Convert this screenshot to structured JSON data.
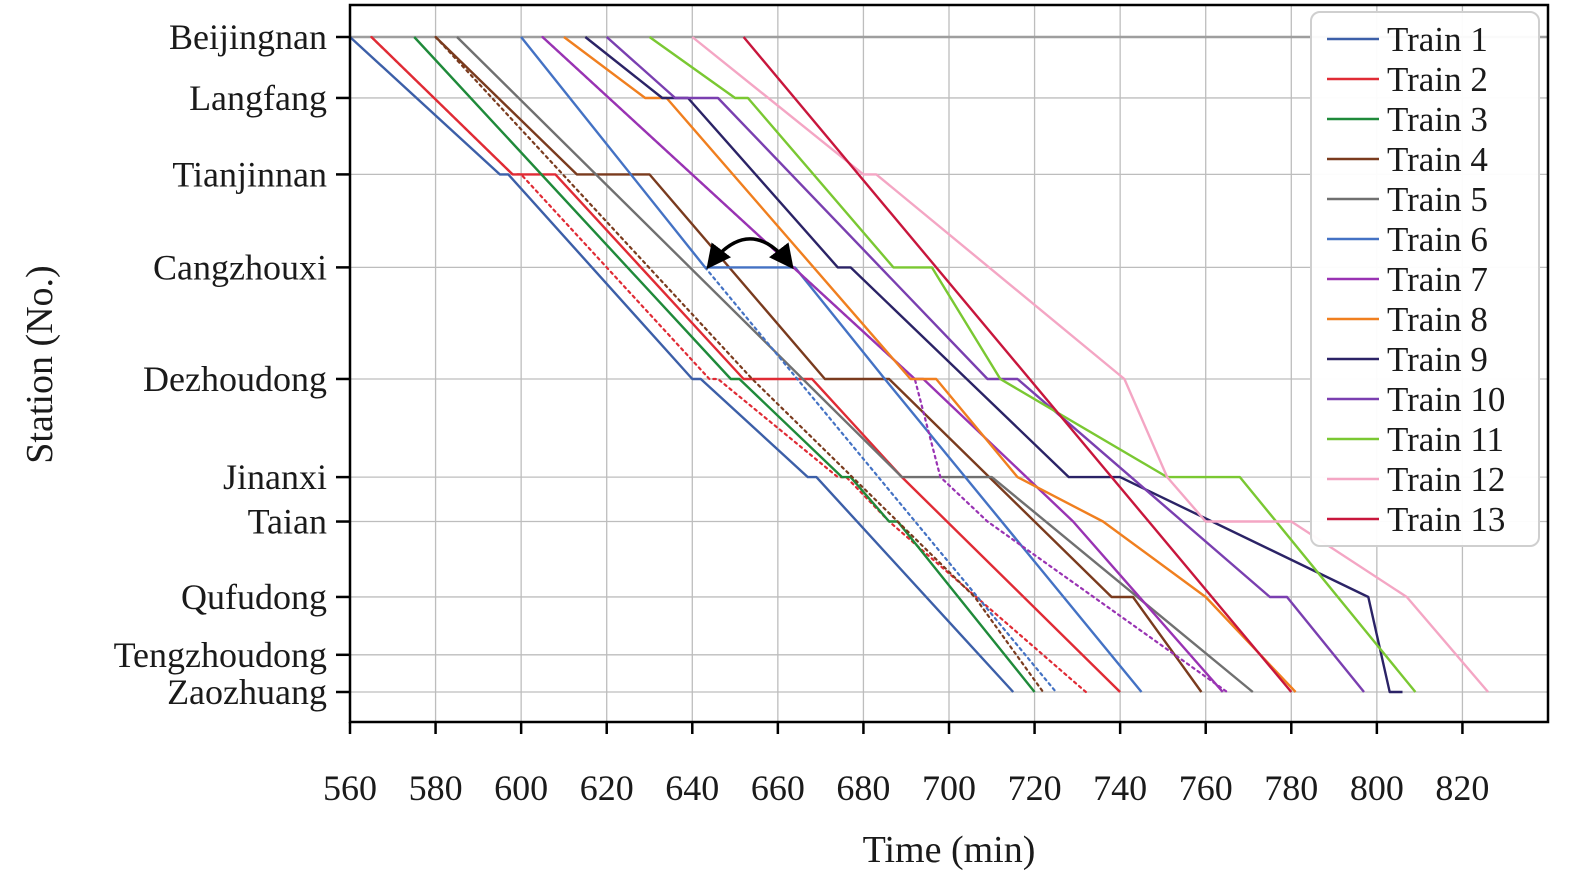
{
  "chart_data": {
    "type": "line",
    "xlabel": "Time (min)",
    "ylabel": "Station (No.)",
    "xlim": [
      560,
      840
    ],
    "x_ticks": [
      560,
      580,
      600,
      620,
      640,
      660,
      680,
      700,
      720,
      740,
      760,
      780,
      800,
      820
    ],
    "grid": true,
    "legend_position": "top-right",
    "stations": [
      "Beijingnan",
      "Langfang",
      "Tianjinnan",
      "Cangzhouxi",
      "Dezhoudong",
      "Jinanxi",
      "Taian",
      "Qufudong",
      "Tengzhoudong",
      "Zaozhuang"
    ],
    "station_offsets": [
      0,
      0.59,
      1.33,
      2.23,
      3.31,
      4.26,
      4.69,
      5.42,
      5.98,
      6.34
    ],
    "series": [
      {
        "name": "Train 1",
        "color": "#3c5fa8",
        "actual": [
          [
            560,
            0
          ],
          [
            595,
            1.33
          ],
          [
            597,
            1.33
          ],
          [
            640,
            3.31
          ],
          [
            642,
            3.31
          ],
          [
            667,
            4.26
          ],
          [
            669,
            4.26
          ],
          [
            715,
            6.34
          ]
        ]
      },
      {
        "name": "Train 2",
        "color": "#e02b35",
        "actual": [
          [
            565,
            0
          ],
          [
            598,
            1.33
          ],
          [
            608,
            1.33
          ],
          [
            652,
            3.31
          ],
          [
            668,
            3.31
          ],
          [
            689,
            4.26
          ],
          [
            740,
            6.34
          ]
        ],
        "planned": [
          [
            565,
            0
          ],
          [
            598,
            1.33
          ],
          [
            600,
            1.33
          ],
          [
            644,
            3.31
          ],
          [
            646,
            3.31
          ],
          [
            674,
            4.26
          ],
          [
            676,
            4.26
          ],
          [
            686,
            4.69
          ],
          [
            732,
            6.34
          ]
        ]
      },
      {
        "name": "Train 3",
        "color": "#1f8a3a",
        "actual": [
          [
            575,
            0
          ],
          [
            649,
            3.31
          ],
          [
            651,
            3.31
          ],
          [
            675,
            4.26
          ],
          [
            677,
            4.26
          ],
          [
            686,
            4.69
          ],
          [
            688,
            4.69
          ],
          [
            720,
            6.34
          ]
        ]
      },
      {
        "name": "Train 4",
        "color": "#7a3b1e",
        "actual": [
          [
            580,
            0
          ],
          [
            613,
            1.33
          ],
          [
            630,
            1.33
          ],
          [
            671,
            3.31
          ],
          [
            686,
            3.31
          ],
          [
            738,
            5.42
          ],
          [
            743,
            5.42
          ],
          [
            759,
            6.34
          ]
        ],
        "planned": [
          [
            580,
            0
          ],
          [
            654,
            3.31
          ],
          [
            706,
            5.42
          ],
          [
            722,
            6.34
          ]
        ]
      },
      {
        "name": "Train 5",
        "color": "#707070",
        "actual": [
          [
            585,
            0
          ],
          [
            689,
            4.26
          ],
          [
            710,
            4.26
          ],
          [
            771,
            6.34
          ]
        ]
      },
      {
        "name": "Train 6",
        "color": "#4472c4",
        "actual": [
          [
            600,
            0
          ],
          [
            643,
            2.23
          ],
          [
            664,
            2.23
          ],
          [
            685,
            3.31
          ],
          [
            745,
            6.34
          ]
        ],
        "planned": [
          [
            643,
            2.23
          ],
          [
            725,
            6.34
          ]
        ]
      },
      {
        "name": "Train 7",
        "color": "#9933b3",
        "actual": [
          [
            605,
            0
          ],
          [
            692,
            3.31
          ],
          [
            694,
            3.31
          ],
          [
            729,
            4.69
          ],
          [
            764,
            6.34
          ]
        ],
        "planned": [
          [
            605,
            0
          ],
          [
            692,
            3.31
          ],
          [
            698,
            4.26
          ],
          [
            709,
            4.69
          ],
          [
            765,
            6.34
          ]
        ]
      },
      {
        "name": "Train 8",
        "color": "#f07f1f",
        "actual": [
          [
            610,
            0
          ],
          [
            629,
            0.59
          ],
          [
            634,
            0.59
          ],
          [
            691,
            3.31
          ],
          [
            697,
            3.31
          ],
          [
            716,
            4.26
          ],
          [
            736,
            4.69
          ],
          [
            760,
            5.42
          ],
          [
            781,
            6.34
          ]
        ]
      },
      {
        "name": "Train 9",
        "color": "#2b2366",
        "actual": [
          [
            615,
            0
          ],
          [
            633,
            0.59
          ],
          [
            639,
            0.59
          ],
          [
            674,
            2.23
          ],
          [
            677,
            2.23
          ],
          [
            728,
            4.26
          ],
          [
            740,
            4.26
          ],
          [
            798,
            5.42
          ],
          [
            803,
            6.34
          ],
          [
            806,
            6.34
          ]
        ]
      },
      {
        "name": "Train 10",
        "color": "#7a3fb0",
        "actual": [
          [
            620,
            0
          ],
          [
            636,
            0.59
          ],
          [
            646,
            0.59
          ],
          [
            709,
            3.31
          ],
          [
            716,
            3.31
          ],
          [
            775,
            5.42
          ],
          [
            779,
            5.42
          ],
          [
            797,
            6.34
          ]
        ]
      },
      {
        "name": "Train 11",
        "color": "#7ac832",
        "actual": [
          [
            630,
            0
          ],
          [
            650,
            0.59
          ],
          [
            653,
            0.59
          ],
          [
            687,
            2.23
          ],
          [
            696,
            2.23
          ],
          [
            712,
            3.31
          ],
          [
            751,
            4.26
          ],
          [
            768,
            4.26
          ],
          [
            809,
            6.34
          ]
        ]
      },
      {
        "name": "Train 12",
        "color": "#f4a6c4",
        "actual": [
          [
            640,
            0
          ],
          [
            680,
            1.33
          ],
          [
            683,
            1.33
          ],
          [
            741,
            3.31
          ],
          [
            751,
            4.26
          ],
          [
            760,
            4.69
          ],
          [
            780,
            4.69
          ],
          [
            807,
            5.42
          ],
          [
            826,
            6.34
          ]
        ]
      },
      {
        "name": "Train 13",
        "color": "#c8163c",
        "actual": [
          [
            652,
            0
          ],
          [
            780,
            6.34
          ]
        ]
      }
    ],
    "annotation": {
      "type": "curved-arrow",
      "from": [
        644,
        2.23
      ],
      "to": [
        663,
        2.23
      ]
    }
  }
}
